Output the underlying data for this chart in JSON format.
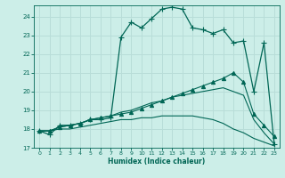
{
  "background_color": "#cceee8",
  "grid_color": "#b8ddd8",
  "line_color": "#006655",
  "xlabel": "Humidex (Indice chaleur)",
  "xlim": [
    -0.5,
    23.5
  ],
  "ylim": [
    17.0,
    24.6
  ],
  "yticks": [
    17,
    18,
    19,
    20,
    21,
    22,
    23,
    24
  ],
  "xticks": [
    0,
    1,
    2,
    3,
    4,
    5,
    6,
    7,
    8,
    9,
    10,
    11,
    12,
    13,
    14,
    15,
    16,
    17,
    18,
    19,
    20,
    21,
    22,
    23
  ],
  "series": [
    {
      "x": [
        0,
        1,
        2,
        3,
        4,
        5,
        6,
        7,
        8,
        9,
        10,
        11,
        12,
        13,
        14,
        15,
        16,
        17,
        18,
        19,
        20,
        21,
        22,
        23
      ],
      "y": [
        17.9,
        17.7,
        18.2,
        18.2,
        18.3,
        18.5,
        18.5,
        18.6,
        22.9,
        23.7,
        23.4,
        23.9,
        24.4,
        24.5,
        24.4,
        23.4,
        23.3,
        23.1,
        23.3,
        22.6,
        22.7,
        20.0,
        22.6,
        17.2
      ],
      "marker": "+",
      "markersize": 4,
      "linewidth": 0.9
    },
    {
      "x": [
        0,
        1,
        2,
        3,
        4,
        5,
        6,
        7,
        8,
        9,
        10,
        11,
        12,
        13,
        14,
        15,
        16,
        17,
        18,
        19,
        20,
        21,
        22,
        23
      ],
      "y": [
        17.9,
        17.9,
        18.1,
        18.2,
        18.3,
        18.5,
        18.6,
        18.7,
        18.8,
        18.9,
        19.1,
        19.3,
        19.5,
        19.7,
        19.9,
        20.1,
        20.3,
        20.5,
        20.7,
        21.0,
        20.5,
        18.8,
        18.2,
        17.6
      ],
      "marker": "^",
      "markersize": 3,
      "linewidth": 0.8
    },
    {
      "x": [
        0,
        1,
        2,
        3,
        4,
        5,
        6,
        7,
        8,
        9,
        10,
        11,
        12,
        13,
        14,
        15,
        16,
        17,
        18,
        19,
        20,
        21,
        22,
        23
      ],
      "y": [
        17.9,
        17.9,
        18.1,
        18.2,
        18.3,
        18.5,
        18.6,
        18.7,
        18.9,
        19.0,
        19.2,
        19.4,
        19.5,
        19.7,
        19.8,
        19.9,
        20.0,
        20.1,
        20.2,
        20.0,
        19.8,
        18.5,
        17.8,
        17.2
      ],
      "marker": null,
      "linewidth": 0.8
    },
    {
      "x": [
        0,
        1,
        2,
        3,
        4,
        5,
        6,
        7,
        8,
        9,
        10,
        11,
        12,
        13,
        14,
        15,
        16,
        17,
        18,
        19,
        20,
        21,
        22,
        23
      ],
      "y": [
        17.9,
        17.9,
        18.0,
        18.0,
        18.1,
        18.2,
        18.3,
        18.4,
        18.5,
        18.5,
        18.6,
        18.6,
        18.7,
        18.7,
        18.7,
        18.7,
        18.6,
        18.5,
        18.3,
        18.0,
        17.8,
        17.5,
        17.3,
        17.1
      ],
      "marker": null,
      "linewidth": 0.8
    }
  ]
}
